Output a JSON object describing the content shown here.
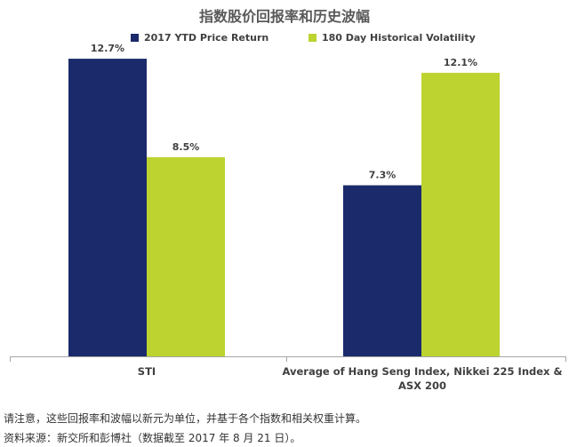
{
  "chart_data": {
    "type": "bar",
    "title": "指数股价回报率和历史波幅",
    "categories": [
      "STI",
      "Average of Hang Seng Index, Nikkei 225 Index & ASX 200"
    ],
    "series": [
      {
        "name": "2017 YTD Price Return",
        "values": [
          12.7,
          7.3
        ],
        "labels": [
          "12.7%",
          "7.3%"
        ],
        "color": "#1b2a6b"
      },
      {
        "name": "180 Day Historical Volatility",
        "values": [
          8.5,
          12.1
        ],
        "labels": [
          "8.5%",
          "12.1%"
        ],
        "color": "#bcd330"
      }
    ],
    "ylim": [
      0,
      13.5
    ],
    "grid": false,
    "legend": "top"
  },
  "notes": [
    "请注意，这些回报率和波幅以新元为单位，并基于各个指数和相关权重计算。",
    "资料来源：新交所和彭博社（数据截至 2017 年 8 月 21 日）。"
  ]
}
